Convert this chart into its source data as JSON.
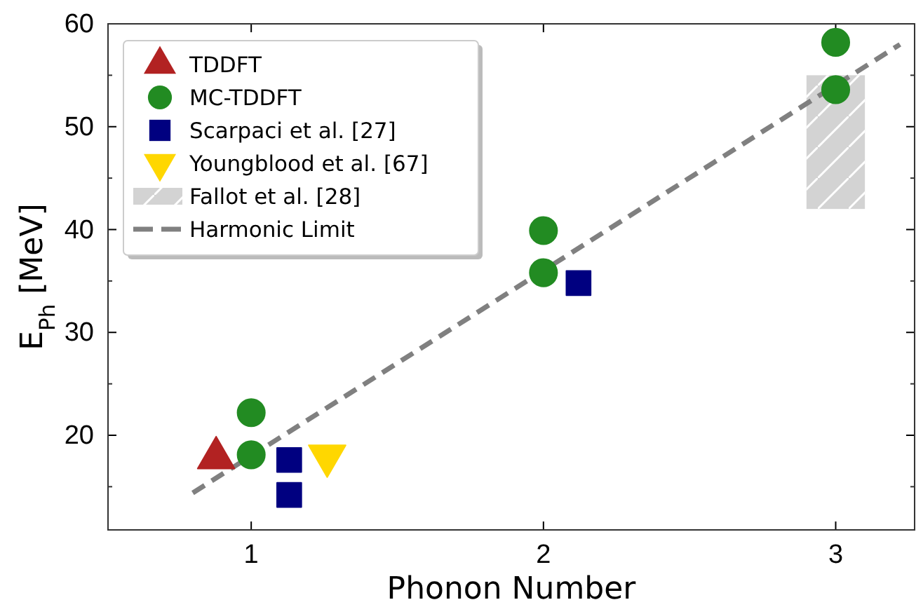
{
  "chart_data": {
    "type": "scatter",
    "xlabel": "Phonon Number",
    "ylabel": "E$_{Ph}$ [MeV]",
    "xlim": [
      0.51,
      3.27
    ],
    "xticks": [
      1,
      2,
      3
    ],
    "ylim": [
      10.8,
      60
    ],
    "yticks": [
      20,
      30,
      40,
      50,
      60
    ],
    "legend": "top left",
    "grid": false,
    "series": [
      {
        "name": "TDDFT",
        "marker": "triangle",
        "color": "#b22222",
        "x": [
          0.88
        ],
        "values": [
          17.8
        ]
      },
      {
        "name": "MC-TDDFT",
        "marker": "circle",
        "color": "#228b22",
        "x": [
          1,
          1,
          2,
          2,
          3,
          3
        ],
        "values": [
          22.2,
          18.1,
          39.9,
          35.8,
          58.2,
          53.6
        ]
      },
      {
        "name": "Scarpaci et al. [27]",
        "marker": "square",
        "color": "#000080",
        "x": [
          1.13,
          1.13,
          2.12
        ],
        "values": [
          17.6,
          14.2,
          34.8
        ]
      },
      {
        "name": "Youngblood et al. [67]",
        "marker": "triangle-down",
        "color": "#ffd700",
        "x": [
          1.26
        ],
        "values": [
          18.0
        ]
      },
      {
        "name": "Fallot et al. [28]",
        "type": "bar",
        "color": "#d3d3d3",
        "x": [
          3
        ],
        "base": [
          42
        ],
        "values": [
          13
        ]
      },
      {
        "name": "Harmonic Limit",
        "type": "line",
        "line_style": "dashed",
        "color": "#808080",
        "x": [
          0.8,
          3.22
        ],
        "values": [
          14.4,
          58
        ]
      }
    ]
  }
}
